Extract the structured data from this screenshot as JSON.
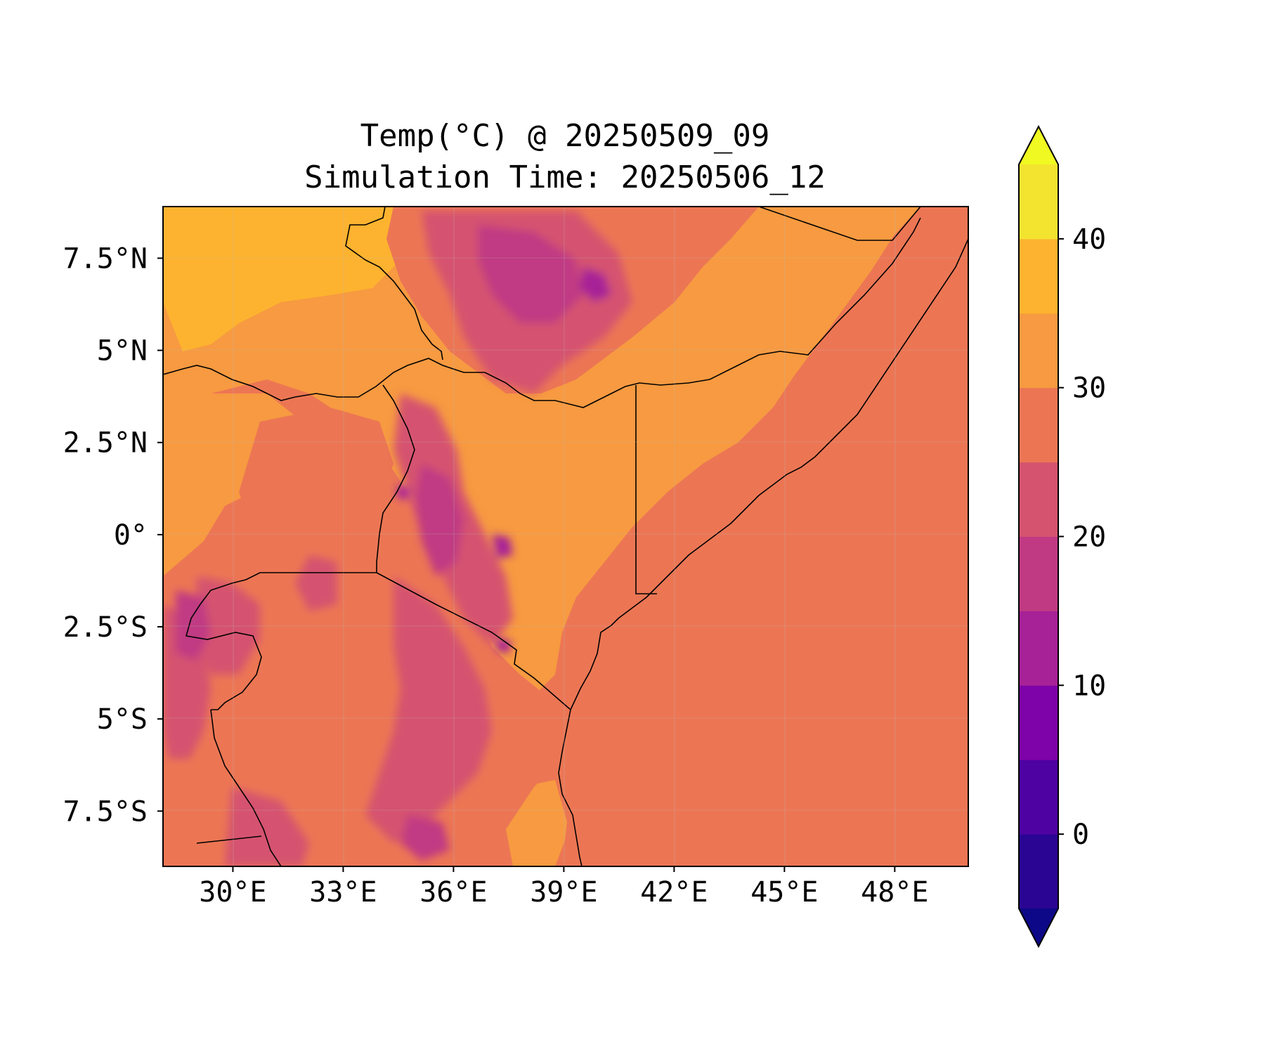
{
  "title": {
    "line1": "Temp(°C) @ 20250509_09",
    "line2": "Simulation Time: 20250506_12"
  },
  "map": {
    "lon_range": [
      28.1,
      50.0
    ],
    "lat_range": [
      -9.0,
      8.9
    ],
    "lon_ticks": [
      {
        "value": 30,
        "label": "30°E"
      },
      {
        "value": 33,
        "label": "33°E"
      },
      {
        "value": 36,
        "label": "36°E"
      },
      {
        "value": 39,
        "label": "39°E"
      },
      {
        "value": 42,
        "label": "42°E"
      },
      {
        "value": 45,
        "label": "45°E"
      },
      {
        "value": 48,
        "label": "48°E"
      }
    ],
    "lat_ticks": [
      {
        "value": 7.5,
        "label": "7.5°N"
      },
      {
        "value": 5,
        "label": "5°N"
      },
      {
        "value": 2.5,
        "label": "2.5°N"
      },
      {
        "value": 0,
        "label": "0°"
      },
      {
        "value": -2.5,
        "label": "2.5°S"
      },
      {
        "value": -5,
        "label": "5°S"
      },
      {
        "value": -7.5,
        "label": "7.5°S"
      }
    ],
    "fill_colors": {
      "land_hot": "#f79a41",
      "very_hot": "#fdb32f",
      "warm": "#ec7654",
      "mild": "#d5536f",
      "cool": "#c03a83",
      "cold": "#a72197"
    }
  },
  "colorbar": {
    "range": [
      -5,
      45
    ],
    "levels": [
      -5,
      0,
      5,
      10,
      15,
      20,
      25,
      30,
      35,
      40,
      45
    ],
    "colors": [
      "#2a0593",
      "#4e02a2",
      "#7e03a8",
      "#a72197",
      "#c03a83",
      "#d5536f",
      "#ec7654",
      "#f79a41",
      "#fdb32f",
      "#f3e430"
    ],
    "extend_low_color": "#0d0887",
    "extend_high_color": "#f0f921",
    "ticks": [
      {
        "value": 0,
        "label": "0"
      },
      {
        "value": 10,
        "label": "10"
      },
      {
        "value": 20,
        "label": "20"
      },
      {
        "value": 30,
        "label": "30"
      },
      {
        "value": 40,
        "label": "40"
      }
    ]
  }
}
